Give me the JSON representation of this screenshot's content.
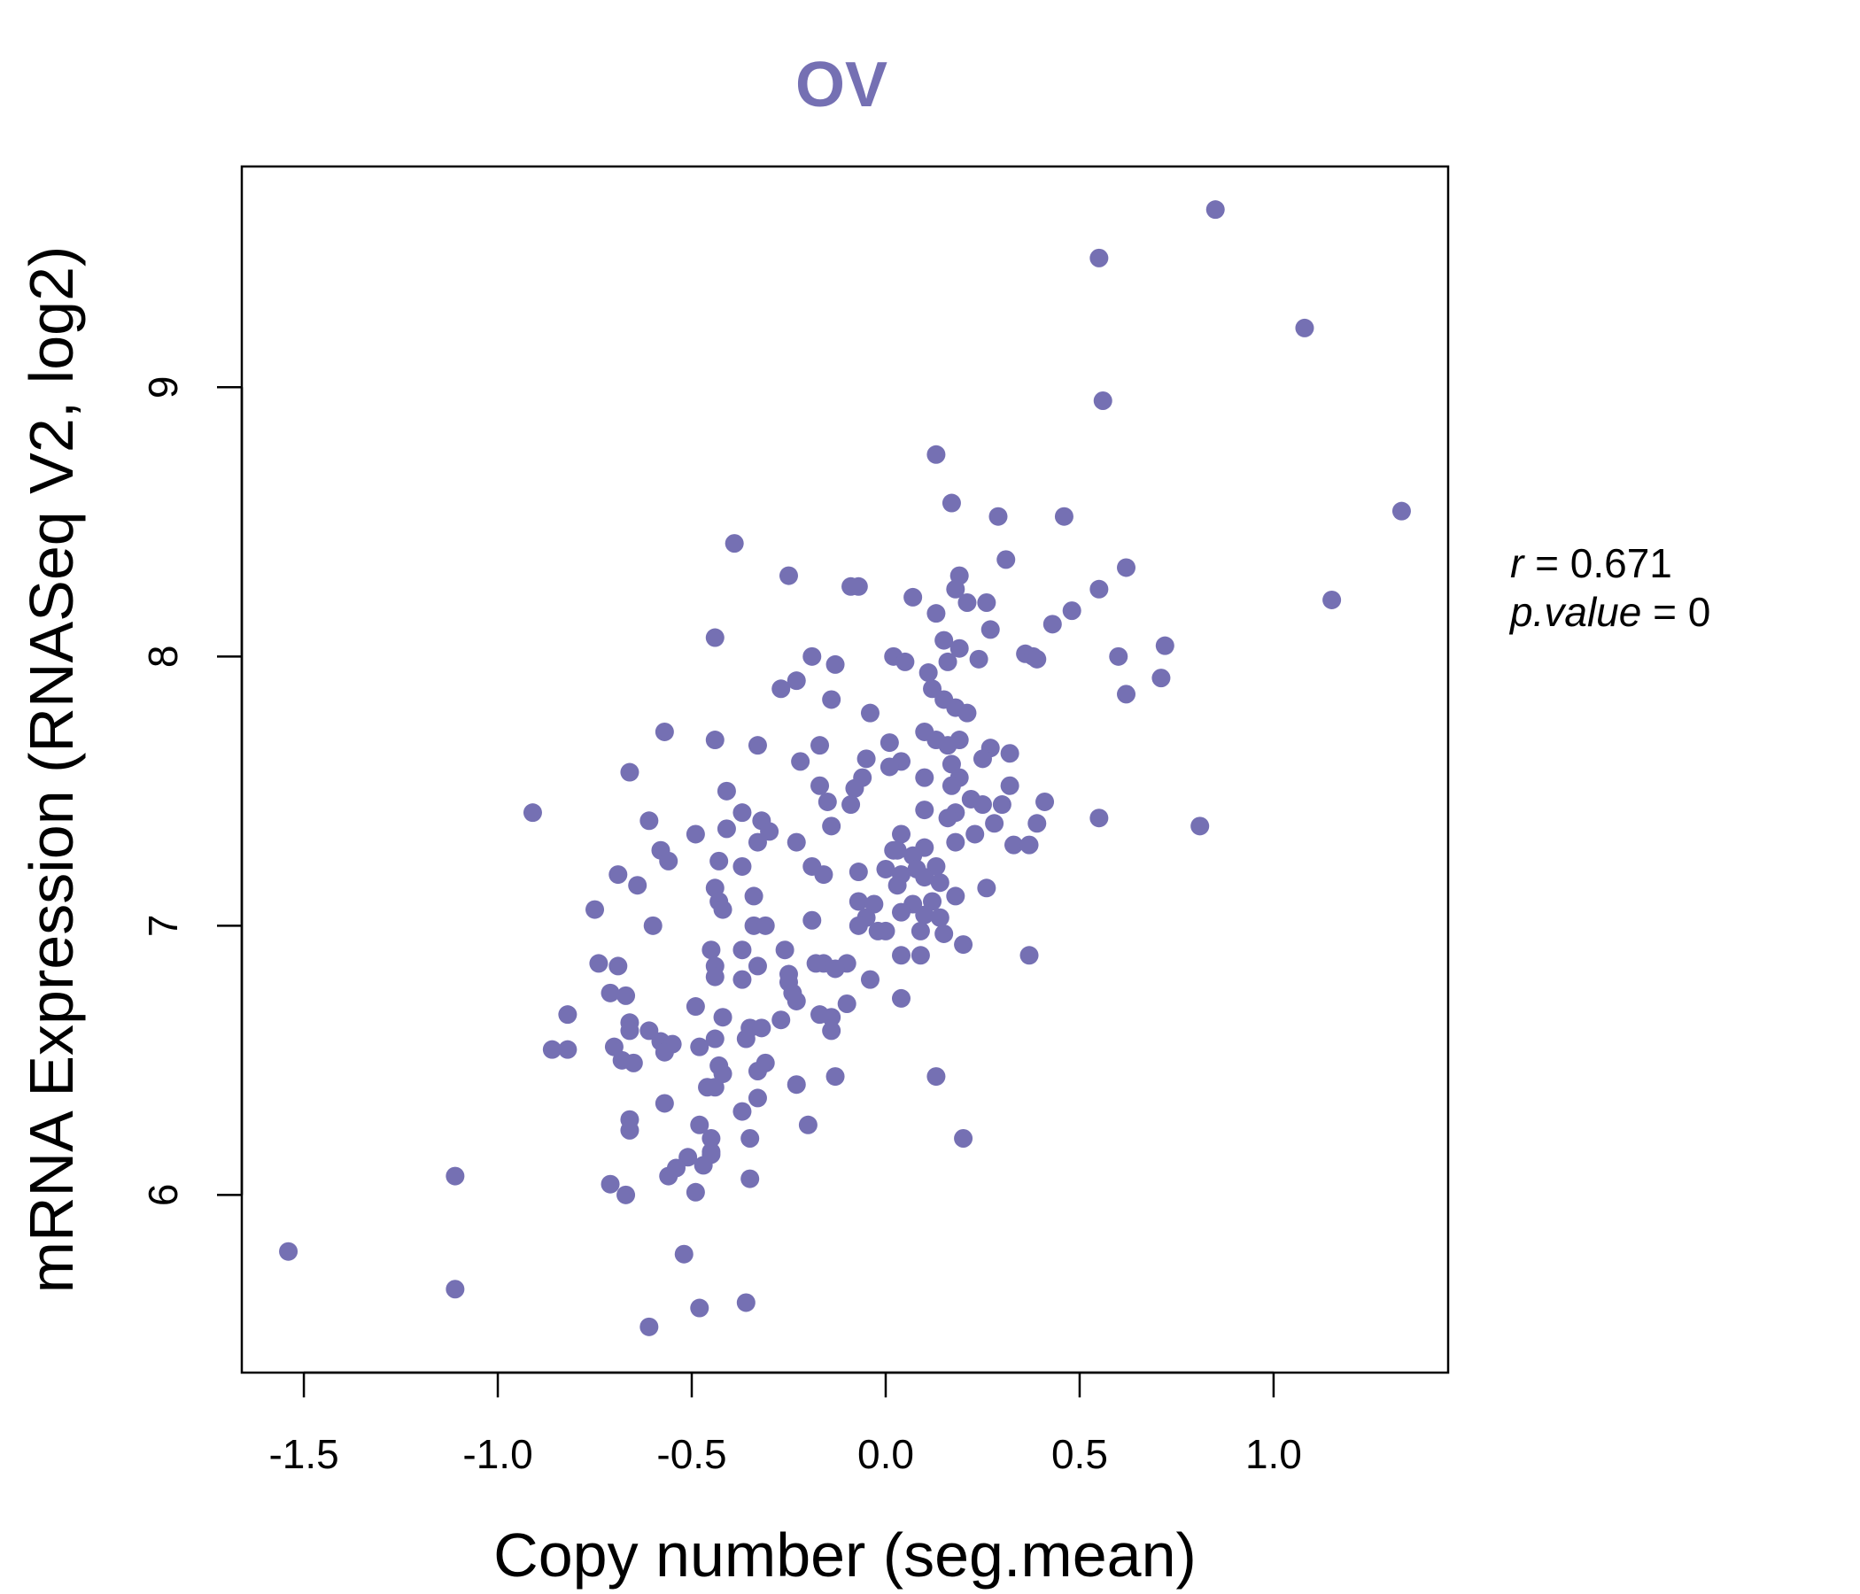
{
  "chart_data": {
    "type": "scatter",
    "title": "OV",
    "xlabel": "Copy number (seg.mean)",
    "ylabel": "mRNA Expression (RNASeq V2, log2)",
    "xlim": [
      -1.66,
      1.45
    ],
    "ylim": [
      5.34,
      9.82
    ],
    "xticks": [
      -1.5,
      -1.0,
      -0.5,
      0.0,
      0.5,
      1.0
    ],
    "xtick_labels": [
      "-1.5",
      "-1.0",
      "-0.5",
      "0.0",
      "0.5",
      "1.0"
    ],
    "yticks": [
      6,
      7,
      8,
      9
    ],
    "ytick_labels": [
      "6",
      "7",
      "8",
      "9"
    ],
    "point_color": "#7570b3",
    "grid": false,
    "stats": {
      "r_label": "r",
      "r_value": "0.671",
      "p_label": "p.value",
      "p_value": "0"
    },
    "points": [
      [
        0.85,
        9.66
      ],
      [
        0.55,
        9.48
      ],
      [
        1.08,
        9.22
      ],
      [
        0.56,
        8.95
      ],
      [
        0.13,
        8.75
      ],
      [
        1.33,
        8.54
      ],
      [
        0.17,
        8.57
      ],
      [
        0.29,
        8.52
      ],
      [
        0.46,
        8.52
      ],
      [
        -0.39,
        8.42
      ],
      [
        0.31,
        8.36
      ],
      [
        -0.25,
        8.3
      ],
      [
        0.19,
        8.3
      ],
      [
        0.62,
        8.33
      ],
      [
        0.55,
        8.25
      ],
      [
        -0.09,
        8.26
      ],
      [
        -0.07,
        8.26
      ],
      [
        0.07,
        8.22
      ],
      [
        0.18,
        8.25
      ],
      [
        0.21,
        8.2
      ],
      [
        0.26,
        8.2
      ],
      [
        1.15,
        8.21
      ],
      [
        0.48,
        8.17
      ],
      [
        0.13,
        8.16
      ],
      [
        0.43,
        8.12
      ],
      [
        0.27,
        8.1
      ],
      [
        -0.44,
        8.07
      ],
      [
        0.15,
        8.06
      ],
      [
        0.19,
        8.03
      ],
      [
        0.72,
        8.04
      ],
      [
        0.36,
        8.01
      ],
      [
        0.38,
        8.0
      ],
      [
        0.39,
        7.99
      ],
      [
        0.6,
        8.0
      ],
      [
        0.02,
        8.0
      ],
      [
        0.05,
        7.98
      ],
      [
        0.16,
        7.98
      ],
      [
        0.24,
        7.99
      ],
      [
        -0.19,
        8.0
      ],
      [
        -0.13,
        7.97
      ],
      [
        0.11,
        7.94
      ],
      [
        -0.23,
        7.91
      ],
      [
        -0.27,
        7.88
      ],
      [
        0.12,
        7.88
      ],
      [
        0.71,
        7.92
      ],
      [
        0.62,
        7.86
      ],
      [
        -0.14,
        7.84
      ],
      [
        0.15,
        7.84
      ],
      [
        0.18,
        7.81
      ],
      [
        0.21,
        7.79
      ],
      [
        -0.04,
        7.79
      ],
      [
        -0.57,
        7.72
      ],
      [
        -0.44,
        7.69
      ],
      [
        0.1,
        7.72
      ],
      [
        0.13,
        7.69
      ],
      [
        0.19,
        7.69
      ],
      [
        0.01,
        7.68
      ],
      [
        -0.33,
        7.67
      ],
      [
        -0.17,
        7.67
      ],
      [
        0.16,
        7.67
      ],
      [
        0.27,
        7.66
      ],
      [
        0.32,
        7.64
      ],
      [
        -0.05,
        7.62
      ],
      [
        -0.22,
        7.61
      ],
      [
        0.04,
        7.61
      ],
      [
        0.01,
        7.59
      ],
      [
        0.17,
        7.6
      ],
      [
        0.25,
        7.62
      ],
      [
        -0.66,
        7.57
      ],
      [
        0.1,
        7.55
      ],
      [
        0.19,
        7.55
      ],
      [
        -0.06,
        7.55
      ],
      [
        -0.08,
        7.51
      ],
      [
        -0.17,
        7.52
      ],
      [
        0.17,
        7.52
      ],
      [
        0.32,
        7.52
      ],
      [
        -0.41,
        7.5
      ],
      [
        -0.15,
        7.46
      ],
      [
        0.22,
        7.47
      ],
      [
        0.25,
        7.45
      ],
      [
        0.3,
        7.45
      ],
      [
        0.41,
        7.46
      ],
      [
        -0.91,
        7.42
      ],
      [
        -0.37,
        7.42
      ],
      [
        -0.09,
        7.45
      ],
      [
        0.1,
        7.43
      ],
      [
        0.18,
        7.42
      ],
      [
        0.16,
        7.4
      ],
      [
        0.55,
        7.4
      ],
      [
        -0.61,
        7.39
      ],
      [
        -0.41,
        7.36
      ],
      [
        -0.32,
        7.39
      ],
      [
        -0.3,
        7.35
      ],
      [
        -0.14,
        7.37
      ],
      [
        0.28,
        7.38
      ],
      [
        0.39,
        7.38
      ],
      [
        0.81,
        7.37
      ],
      [
        -0.49,
        7.34
      ],
      [
        0.04,
        7.34
      ],
      [
        0.23,
        7.34
      ],
      [
        -0.33,
        7.31
      ],
      [
        -0.23,
        7.31
      ],
      [
        0.18,
        7.31
      ],
      [
        0.33,
        7.3
      ],
      [
        0.37,
        7.3
      ],
      [
        0.02,
        7.28
      ],
      [
        -0.58,
        7.28
      ],
      [
        0.03,
        7.28
      ],
      [
        0.1,
        7.29
      ],
      [
        -0.43,
        7.24
      ],
      [
        -0.56,
        7.24
      ],
      [
        0.07,
        7.26
      ],
      [
        0.13,
        7.22
      ],
      [
        -0.37,
        7.22
      ],
      [
        -0.19,
        7.22
      ],
      [
        0.0,
        7.21
      ],
      [
        0.08,
        7.21
      ],
      [
        -0.07,
        7.2
      ],
      [
        -0.69,
        7.19
      ],
      [
        -0.16,
        7.19
      ],
      [
        0.04,
        7.19
      ],
      [
        0.1,
        7.18
      ],
      [
        -0.64,
        7.15
      ],
      [
        -0.44,
        7.14
      ],
      [
        0.03,
        7.15
      ],
      [
        0.14,
        7.16
      ],
      [
        0.26,
        7.14
      ],
      [
        -0.34,
        7.11
      ],
      [
        0.18,
        7.11
      ],
      [
        -0.43,
        7.09
      ],
      [
        -0.07,
        7.09
      ],
      [
        0.07,
        7.08
      ],
      [
        -0.03,
        7.08
      ],
      [
        0.12,
        7.09
      ],
      [
        -0.75,
        7.06
      ],
      [
        -0.42,
        7.06
      ],
      [
        0.04,
        7.05
      ],
      [
        0.1,
        7.04
      ],
      [
        -0.05,
        7.03
      ],
      [
        0.14,
        7.03
      ],
      [
        -0.07,
        7.0
      ],
      [
        -0.34,
        7.0
      ],
      [
        -0.6,
        7.0
      ],
      [
        -0.31,
        7.0
      ],
      [
        -0.19,
        7.02
      ],
      [
        0.0,
        6.98
      ],
      [
        0.15,
        6.97
      ],
      [
        0.09,
        6.98
      ],
      [
        -0.02,
        6.98
      ],
      [
        -0.45,
        6.91
      ],
      [
        -0.37,
        6.91
      ],
      [
        -0.26,
        6.91
      ],
      [
        0.2,
        6.93
      ],
      [
        0.37,
        6.89
      ],
      [
        0.04,
        6.89
      ],
      [
        0.09,
        6.89
      ],
      [
        -0.74,
        6.86
      ],
      [
        -0.69,
        6.85
      ],
      [
        -0.44,
        6.85
      ],
      [
        -0.33,
        6.85
      ],
      [
        -0.16,
        6.86
      ],
      [
        -0.18,
        6.86
      ],
      [
        -0.1,
        6.86
      ],
      [
        -0.13,
        6.84
      ],
      [
        -0.44,
        6.81
      ],
      [
        -0.37,
        6.8
      ],
      [
        -0.25,
        6.82
      ],
      [
        -0.25,
        6.79
      ],
      [
        -0.04,
        6.8
      ],
      [
        -0.71,
        6.75
      ],
      [
        -0.67,
        6.74
      ],
      [
        -0.24,
        6.75
      ],
      [
        -0.23,
        6.72
      ],
      [
        0.04,
        6.73
      ],
      [
        -0.1,
        6.71
      ],
      [
        -0.49,
        6.7
      ],
      [
        -0.82,
        6.67
      ],
      [
        -0.17,
        6.67
      ],
      [
        -0.42,
        6.66
      ],
      [
        -0.14,
        6.66
      ],
      [
        -0.27,
        6.65
      ],
      [
        -0.66,
        6.64
      ],
      [
        -0.66,
        6.61
      ],
      [
        -0.35,
        6.62
      ],
      [
        -0.32,
        6.62
      ],
      [
        -0.61,
        6.61
      ],
      [
        -0.14,
        6.61
      ],
      [
        -0.36,
        6.58
      ],
      [
        -0.44,
        6.58
      ],
      [
        -0.58,
        6.57
      ],
      [
        -0.55,
        6.56
      ],
      [
        -0.7,
        6.55
      ],
      [
        -0.86,
        6.54
      ],
      [
        -0.82,
        6.54
      ],
      [
        -0.48,
        6.55
      ],
      [
        -0.57,
        6.53
      ],
      [
        -0.68,
        6.5
      ],
      [
        -0.65,
        6.49
      ],
      [
        -0.31,
        6.49
      ],
      [
        -0.43,
        6.48
      ],
      [
        -0.33,
        6.46
      ],
      [
        -0.42,
        6.45
      ],
      [
        -0.13,
        6.44
      ],
      [
        -0.23,
        6.41
      ],
      [
        -0.46,
        6.4
      ],
      [
        -0.44,
        6.4
      ],
      [
        -0.33,
        6.36
      ],
      [
        -0.57,
        6.34
      ],
      [
        -0.37,
        6.31
      ],
      [
        -0.66,
        6.28
      ],
      [
        -0.2,
        6.26
      ],
      [
        -0.48,
        6.26
      ],
      [
        -0.66,
        6.24
      ],
      [
        -0.45,
        6.21
      ],
      [
        -0.35,
        6.21
      ],
      [
        0.2,
        6.21
      ],
      [
        -0.45,
        6.16
      ],
      [
        -0.45,
        6.15
      ],
      [
        -0.51,
        6.14
      ],
      [
        -0.47,
        6.11
      ],
      [
        -0.54,
        6.1
      ],
      [
        -0.56,
        6.07
      ],
      [
        -0.35,
        6.06
      ],
      [
        -1.11,
        6.07
      ],
      [
        -0.71,
        6.04
      ],
      [
        -0.49,
        6.01
      ],
      [
        -0.67,
        6.0
      ],
      [
        -1.54,
        5.79
      ],
      [
        -0.52,
        5.78
      ],
      [
        -1.11,
        5.65
      ],
      [
        -0.36,
        5.6
      ],
      [
        -0.48,
        5.58
      ],
      [
        -0.61,
        5.51
      ],
      [
        0.13,
        6.44
      ]
    ]
  }
}
